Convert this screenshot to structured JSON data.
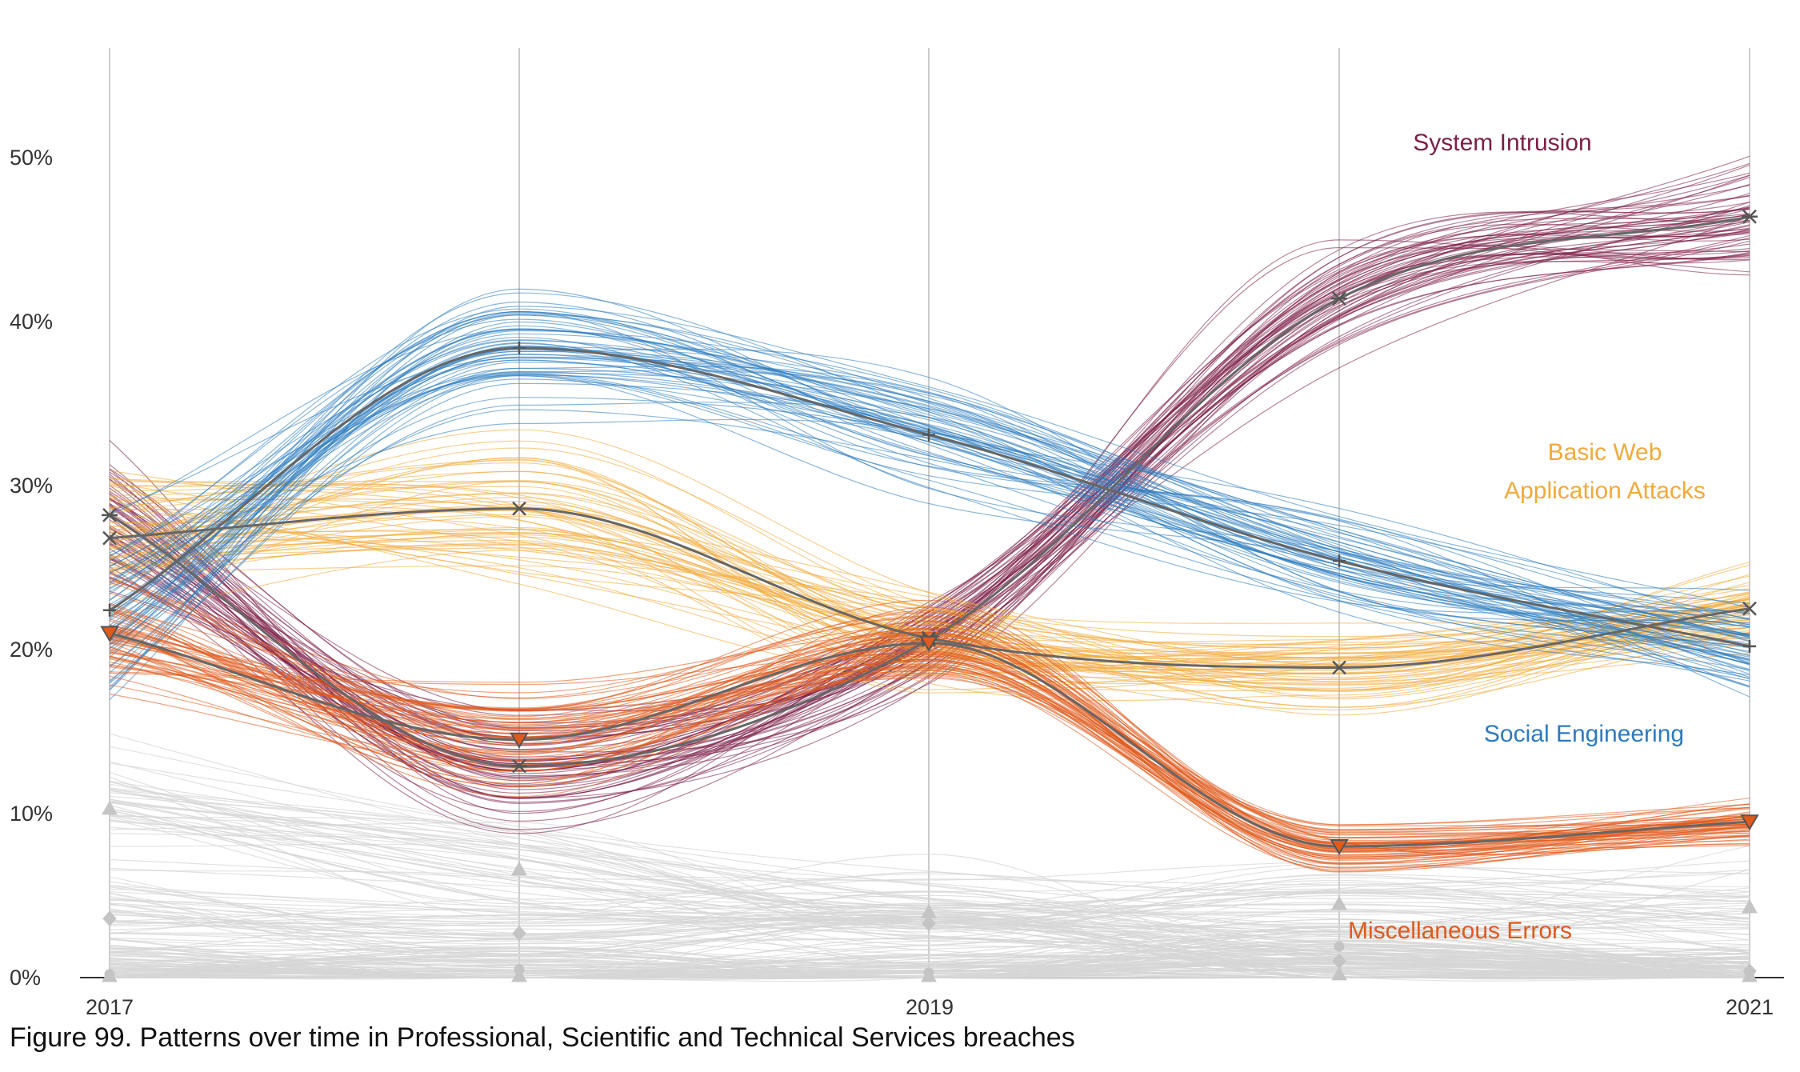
{
  "caption": "Figure 99. Patterns over time in Professional, Scientific and Technical Services breaches",
  "chart_data": {
    "type": "line",
    "title": "",
    "xlabel": "",
    "ylabel": "",
    "x": [
      2017,
      2018,
      2019,
      2020,
      2021
    ],
    "x_tick_labels": [
      "2017",
      "2019",
      "2021"
    ],
    "x_tick_values": [
      2017,
      2019,
      2021
    ],
    "y_tick_labels": [
      "0%",
      "10%",
      "20%",
      "30%",
      "40%",
      "50%"
    ],
    "y_tick_values": [
      0,
      10,
      20,
      30,
      40,
      50
    ],
    "ylim": [
      0,
      56
    ],
    "xlim": [
      2017,
      2021
    ],
    "grid": "vertical at each year",
    "legend": "direct labels",
    "series": [
      {
        "name": "System Intrusion",
        "label": "System Intrusion",
        "color": "#7b1e47",
        "marker": "asterisk",
        "values": [
          28.2,
          12.9,
          20.6,
          41.4,
          46.4
        ]
      },
      {
        "name": "Basic Web Application Attacks",
        "label_lines": [
          "Basic Web",
          "Application Attacks"
        ],
        "color": "#f2a93b",
        "marker": "x",
        "values": [
          26.8,
          28.6,
          20.7,
          18.9,
          22.5
        ]
      },
      {
        "name": "Social Engineering",
        "label": "Social Engineering",
        "color": "#2c7bbf",
        "marker": "plus",
        "values": [
          22.4,
          38.4,
          33.1,
          25.4,
          20.2
        ]
      },
      {
        "name": "Miscellaneous Errors",
        "label": "Miscellaneous Errors",
        "color": "#e05a1c",
        "marker": "triangle-down",
        "values": [
          21.0,
          14.5,
          20.4,
          8.0,
          9.5
        ]
      }
    ],
    "background_series": [
      {
        "marker": "triangle-up",
        "color": "#cccccc",
        "values": [
          10.3,
          6.6,
          4.0,
          4.5,
          4.3
        ]
      },
      {
        "marker": "diamond",
        "color": "#cccccc",
        "values": [
          3.6,
          2.7,
          3.3,
          1.0,
          0.4
        ]
      },
      {
        "marker": "circle",
        "color": "#cccccc",
        "values": [
          0.2,
          0.5,
          0.3,
          1.9,
          0.3
        ]
      },
      {
        "marker": "triangle-up",
        "color": "#cccccc",
        "values": [
          0.1,
          0.1,
          0.1,
          0.2,
          0.1
        ]
      }
    ]
  }
}
